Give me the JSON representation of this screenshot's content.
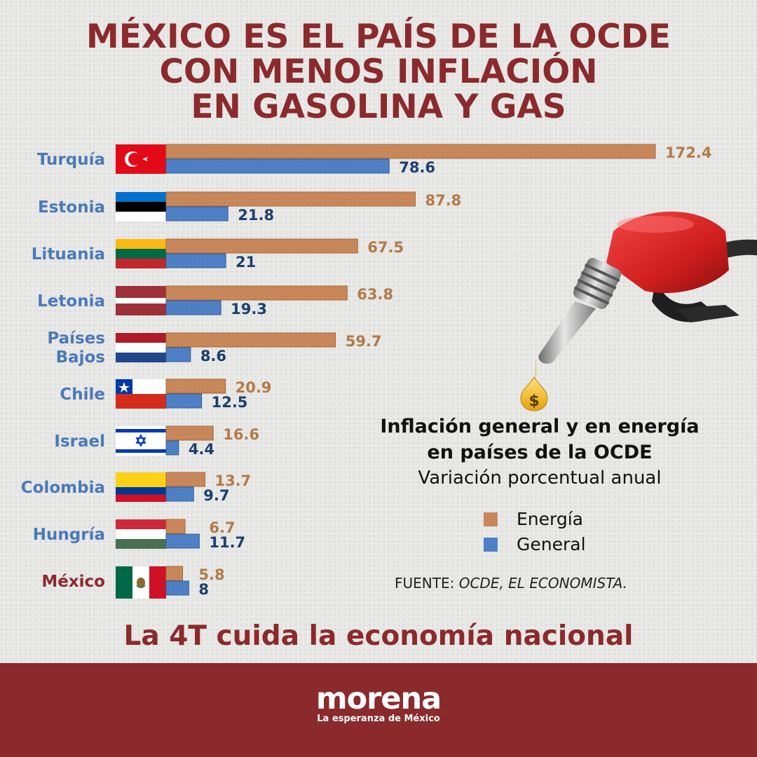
{
  "title": {
    "line1": "MÉXICO ES EL PAÍS DE LA OCDE",
    "line2": "CON MENOS INFLACIÓN",
    "line3": "EN GASOLINA Y GAS"
  },
  "chart_data": {
    "type": "bar",
    "orientation": "horizontal",
    "title": "Inflación general y en energía en países de la OCDE",
    "subtitle": "Variación porcentual anual",
    "categories": [
      "Turquía",
      "Estonia",
      "Lituania",
      "Letonia",
      "Países Bajos",
      "Chile",
      "Israel",
      "Colombia",
      "Hungría",
      "México"
    ],
    "series": [
      {
        "name": "Energía",
        "color": "#c8875a",
        "values": [
          172.4,
          87.8,
          67.5,
          63.8,
          59.7,
          20.9,
          16.6,
          13.7,
          6.7,
          5.8
        ]
      },
      {
        "name": "General",
        "color": "#4f7fc4",
        "values": [
          78.6,
          21.8,
          21,
          19.3,
          8.6,
          12.5,
          4.4,
          9.7,
          11.7,
          8
        ]
      }
    ],
    "value_labels": {
      "Energía": [
        "172.4",
        "87.8",
        "67.5",
        "63.8",
        "59.7",
        "20.9",
        "16.6",
        "13.7",
        "6.7",
        "5.8"
      ],
      "General": [
        "78.6",
        "21.8",
        "21",
        "19.3",
        "8.6",
        "12.5",
        "4.4",
        "9.7",
        "11.7",
        "8"
      ]
    },
    "highlight_category": "México",
    "legend_position": "right",
    "grid": false
  },
  "legend": {
    "title_line1": "Inflación general y en energía",
    "title_line2": "en países de la OCDE",
    "subtitle": "Variación porcentual anual",
    "items": [
      {
        "label": "Energía",
        "color": "#c8875a"
      },
      {
        "label": "General",
        "color": "#4f7fc4"
      }
    ]
  },
  "source": {
    "prefix": "FUENTE:",
    "text": "OCDE, EL ECONOMISTA."
  },
  "slogan": "La 4T cuida la economía nacional",
  "footer": {
    "logo": "morena",
    "tagline": "La esperanza de México",
    "color": "#8b2a2c"
  },
  "colors": {
    "accent": "#8b2a2c",
    "country_label": "#4a7ab8",
    "energy_label": "#b37a46",
    "general_label": "#1c3f6f"
  },
  "icons": [
    "gas-pump-nozzle-icon",
    "dollar-drop-icon"
  ]
}
